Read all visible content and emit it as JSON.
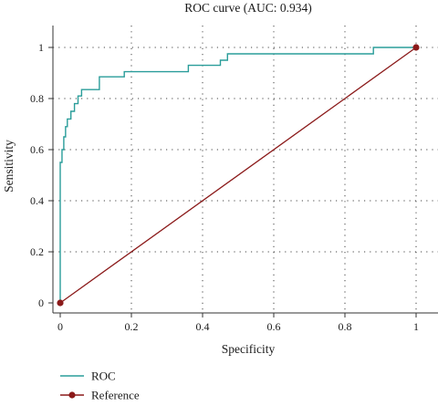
{
  "chart_data": {
    "type": "line",
    "title": "ROC curve (AUC: 0.934)",
    "xlabel": "Specificity",
    "ylabel": "Sensitivity",
    "xlim": [
      0,
      1
    ],
    "ylim": [
      0,
      1
    ],
    "x_ticks": [
      "0",
      "0.2",
      "0.4",
      "0.6",
      "0.8",
      "1"
    ],
    "y_ticks": [
      "0",
      "0.2",
      "0.4",
      "0.6",
      "0.8",
      "1"
    ],
    "grid": true,
    "legend_position": "bottom-left",
    "series": [
      {
        "name": "ROC",
        "color": "#2a9d9a",
        "style": "step",
        "x": [
          0,
          0,
          0.005,
          0.005,
          0.01,
          0.01,
          0.015,
          0.015,
          0.02,
          0.02,
          0.03,
          0.03,
          0.04,
          0.04,
          0.05,
          0.05,
          0.06,
          0.06,
          0.11,
          0.11,
          0.18,
          0.18,
          0.36,
          0.36,
          0.45,
          0.45,
          0.47,
          0.47,
          0.88,
          0.88,
          1.0
        ],
        "y": [
          0,
          0.55,
          0.55,
          0.6,
          0.6,
          0.65,
          0.65,
          0.69,
          0.69,
          0.72,
          0.72,
          0.75,
          0.75,
          0.78,
          0.78,
          0.81,
          0.81,
          0.835,
          0.835,
          0.885,
          0.885,
          0.905,
          0.905,
          0.93,
          0.93,
          0.95,
          0.95,
          0.975,
          0.975,
          1.0,
          1.0
        ]
      },
      {
        "name": "Reference",
        "color": "#8b1a1a",
        "style": "line-marker",
        "x": [
          0,
          1
        ],
        "y": [
          0,
          1
        ]
      }
    ]
  }
}
